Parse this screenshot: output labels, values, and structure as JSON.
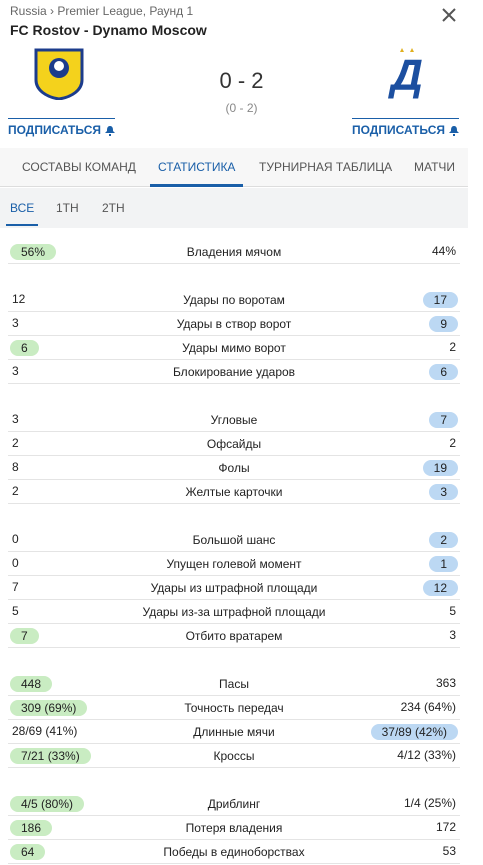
{
  "header": {
    "breadcrumb": "Russia › Premier League, Раунд 1",
    "title": "FC Rostov - Dynamo Moscow",
    "score": "0 - 2",
    "halftime": "(0 - 2)",
    "subscribe_home": "ПОДПИСАТЬСЯ",
    "subscribe_away": "ПОДПИСАТЬСЯ"
  },
  "tabs": {
    "items": [
      "СОСТАВЫ КОМАНД",
      "СТАТИСТИКА",
      "ТУРНИРНАЯ ТАБЛИЦА",
      "МАТЧИ"
    ],
    "active": 1
  },
  "subtabs": {
    "items": [
      "ВСЕ",
      "1ТН",
      "2ТН"
    ],
    "active": 0
  },
  "stats": [
    [
      {
        "home": "56%",
        "label": "Владения мячом",
        "away": "44%",
        "leader": "home"
      }
    ],
    [
      {
        "home": "12",
        "label": "Удары по воротам",
        "away": "17",
        "leader": "away"
      },
      {
        "home": "3",
        "label": "Удары в створ ворот",
        "away": "9",
        "leader": "away"
      },
      {
        "home": "6",
        "label": "Удары мимо ворот",
        "away": "2",
        "leader": "home"
      },
      {
        "home": "3",
        "label": "Блокирование ударов",
        "away": "6",
        "leader": "away"
      }
    ],
    [
      {
        "home": "3",
        "label": "Угловые",
        "away": "7",
        "leader": "away"
      },
      {
        "home": "2",
        "label": "Офсайды",
        "away": "2",
        "leader": null
      },
      {
        "home": "8",
        "label": "Фолы",
        "away": "19",
        "leader": "away"
      },
      {
        "home": "2",
        "label": "Желтые карточки",
        "away": "3",
        "leader": "away"
      }
    ],
    [
      {
        "home": "0",
        "label": "Большой шанс",
        "away": "2",
        "leader": "away"
      },
      {
        "home": "0",
        "label": "Упущен голевой момент",
        "away": "1",
        "leader": "away"
      },
      {
        "home": "7",
        "label": "Удары из штрафной площади",
        "away": "12",
        "leader": "away"
      },
      {
        "home": "5",
        "label": "Удары из-за штрафной площади",
        "away": "5",
        "leader": null
      },
      {
        "home": "7",
        "label": "Отбито вратарем",
        "away": "3",
        "leader": "home"
      }
    ],
    [
      {
        "home": "448",
        "label": "Пасы",
        "away": "363",
        "leader": "home"
      },
      {
        "home": "309 (69%)",
        "label": "Точность передач",
        "away": "234 (64%)",
        "leader": "home"
      },
      {
        "home": "28/69 (41%)",
        "label": "Длинные мячи",
        "away": "37/89 (42%)",
        "leader": "away"
      },
      {
        "home": "7/21 (33%)",
        "label": "Кроссы",
        "away": "4/12 (33%)",
        "leader": "home"
      }
    ],
    [
      {
        "home": "4/5 (80%)",
        "label": "Дриблинг",
        "away": "1/4 (25%)",
        "leader": "home"
      },
      {
        "home": "186",
        "label": "Потеря владения",
        "away": "172",
        "leader": "home"
      },
      {
        "home": "64",
        "label": "Победы в единоборствах",
        "away": "53",
        "leader": "home"
      }
    ]
  ]
}
